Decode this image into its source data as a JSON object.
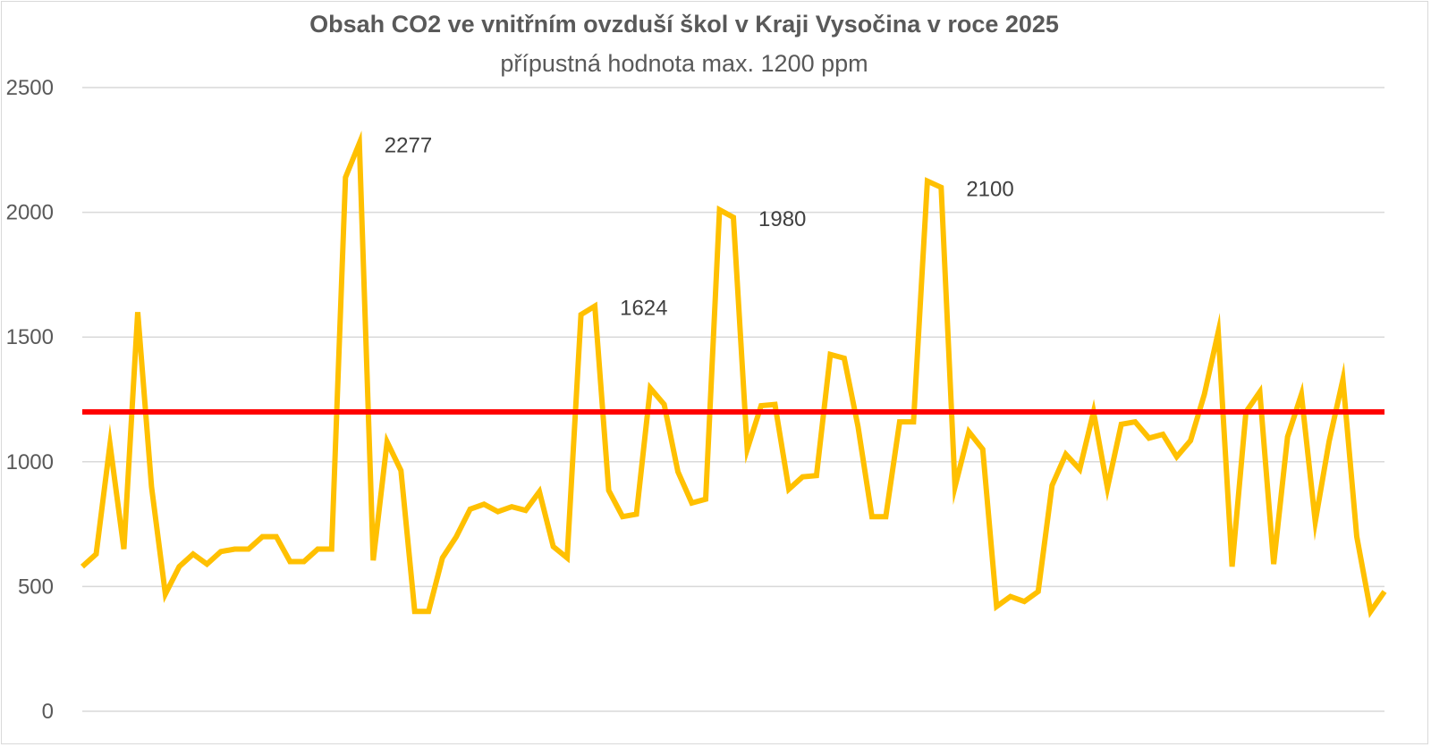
{
  "chart_data": {
    "type": "line",
    "title": "Obsah CO2 ve vnitřním ovzduší škol v Kraji Vysočina v roce 2025",
    "subtitle": "přípustná hodnota max. 1200 ppm",
    "ylim": [
      0,
      2500
    ],
    "y_ticks": [
      "0",
      "500",
      "1000",
      "1500",
      "2000",
      "2500"
    ],
    "grid": true,
    "series": [
      {
        "color": "#FFC000",
        "values": [
          580,
          630,
          1070,
          650,
          1600,
          900,
          470,
          580,
          630,
          590,
          640,
          650,
          650,
          700,
          700,
          600,
          600,
          650,
          650,
          2140,
          2277,
          605,
          1080,
          965,
          400,
          400,
          615,
          700,
          810,
          830,
          800,
          820,
          805,
          880,
          660,
          615,
          1590,
          1624,
          885,
          780,
          790,
          1295,
          1230,
          960,
          835,
          850,
          2010,
          1980,
          1050,
          1225,
          1230,
          890,
          940,
          945,
          1430,
          1415,
          1140,
          780,
          780,
          1160,
          1160,
          2125,
          2100,
          900,
          1120,
          1050,
          420,
          460,
          440,
          480,
          905,
          1030,
          970,
          1200,
          895,
          1150,
          1160,
          1095,
          1110,
          1020,
          1085,
          1270,
          1520,
          580,
          1200,
          1280,
          590,
          1100,
          1270,
          760,
          1080,
          1330,
          700,
          400,
          480
        ]
      },
      {
        "color": "#FF0000",
        "values": [
          1200,
          1200
        ]
      }
    ],
    "annotations": [
      {
        "index": 20,
        "label": "2277"
      },
      {
        "index": 37,
        "label": "1624"
      },
      {
        "index": 47,
        "label": "1980"
      },
      {
        "index": 62,
        "label": "2100"
      }
    ]
  }
}
